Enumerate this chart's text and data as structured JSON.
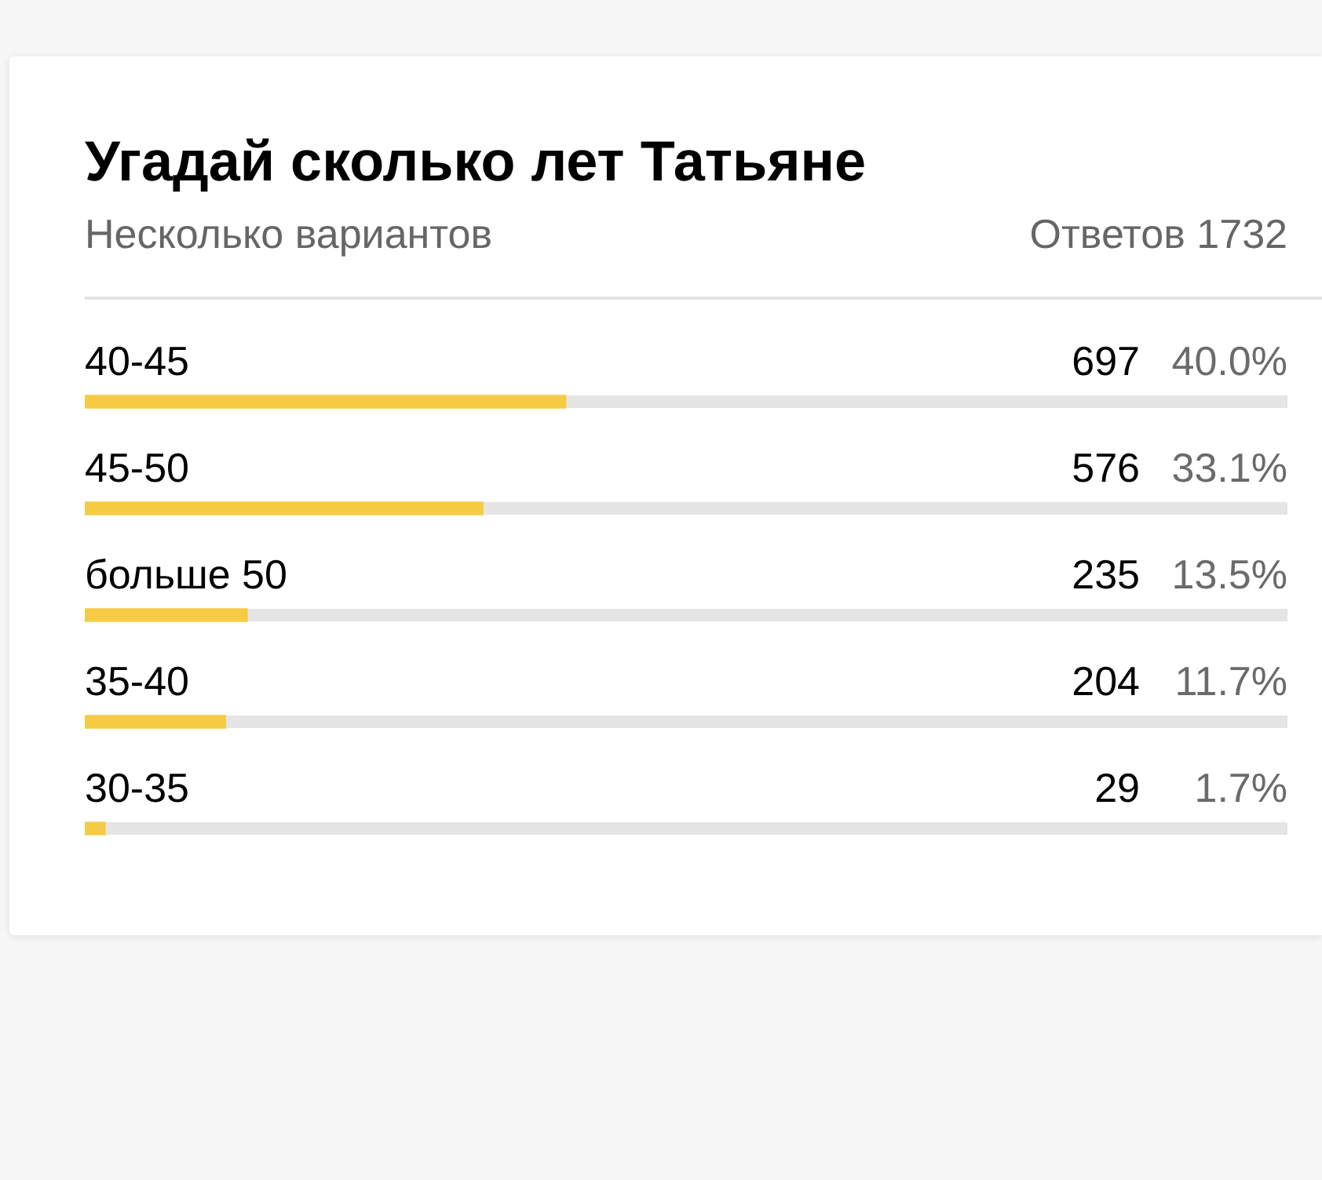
{
  "chart_data": {
    "type": "bar",
    "orientation": "horizontal",
    "title": "Угадай сколько лет Татьяне",
    "subtitle": "Несколько вариантов",
    "categories": [
      "40-45",
      "45-50",
      "больше 50",
      "35-40",
      "30-35"
    ],
    "values": [
      40.0,
      33.1,
      13.5,
      11.7,
      1.7
    ],
    "value_labels": [
      "40.0%",
      "33.1%",
      "13.5%",
      "11.7%",
      "1.7%"
    ],
    "color": "#f6cb44",
    "xlim": [
      0,
      100
    ],
    "tick_labels": "y",
    "annotations": [
      "Ответов 1732",
      "697",
      "576",
      "235",
      "204",
      "29"
    ]
  }
}
